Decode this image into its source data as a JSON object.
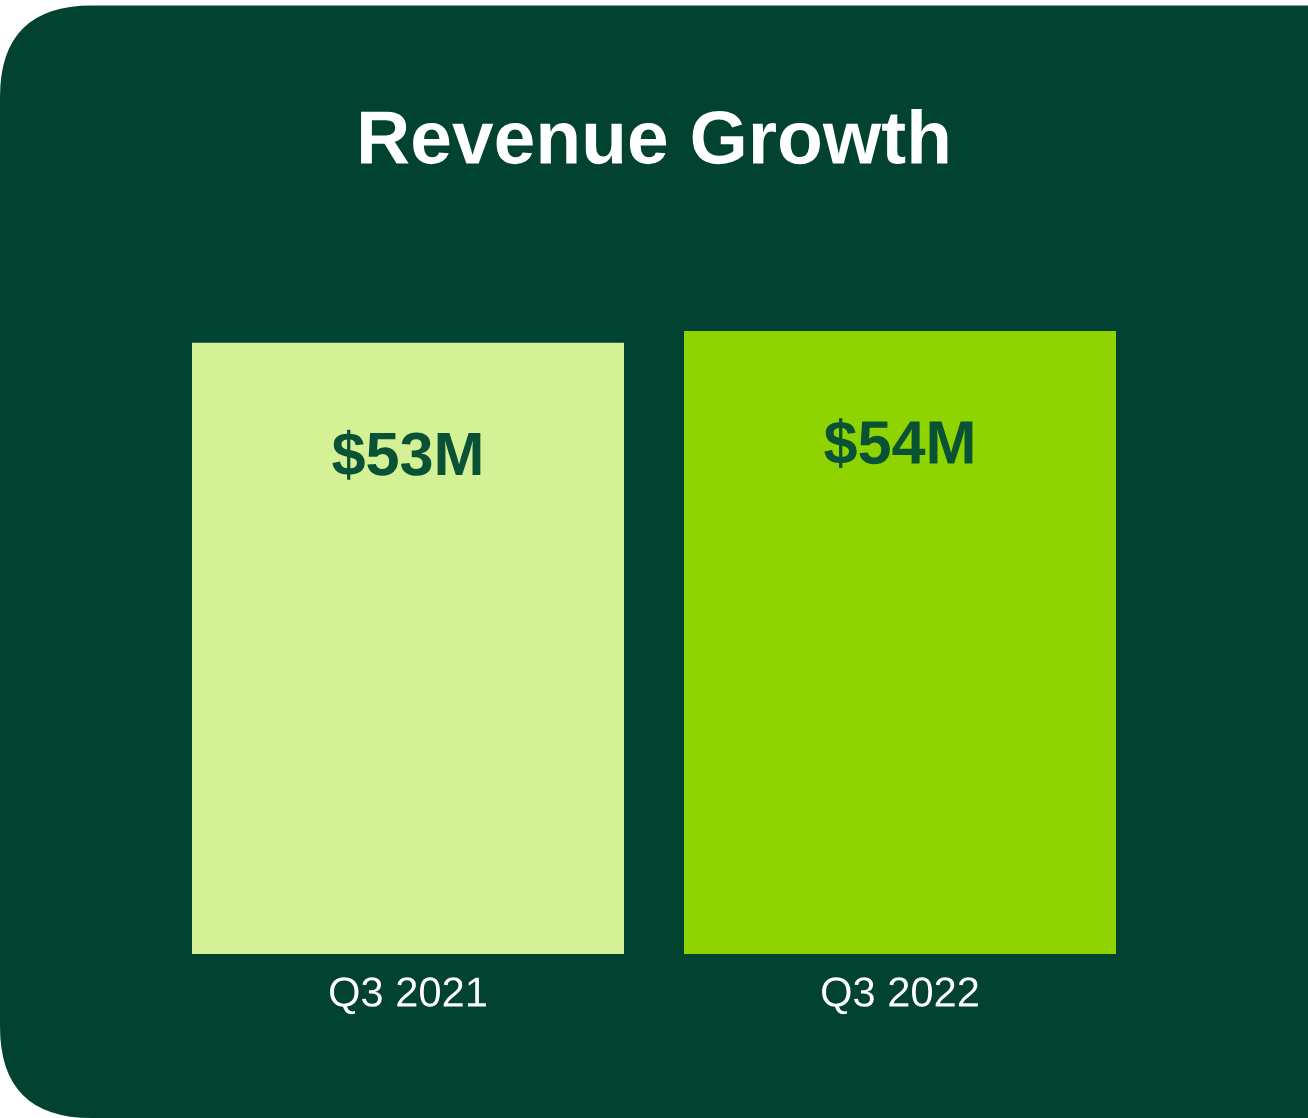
{
  "chart_data": {
    "type": "bar",
    "title": "Revenue Growth",
    "categories": [
      "Q3 2021",
      "Q3 2022"
    ],
    "values": [
      53,
      54
    ],
    "colors": [
      "#d5f195",
      "#8fd400"
    ],
    "value_labels": [
      "$53M",
      "$54M"
    ],
    "tick_labels": "x",
    "legend": false
  }
}
